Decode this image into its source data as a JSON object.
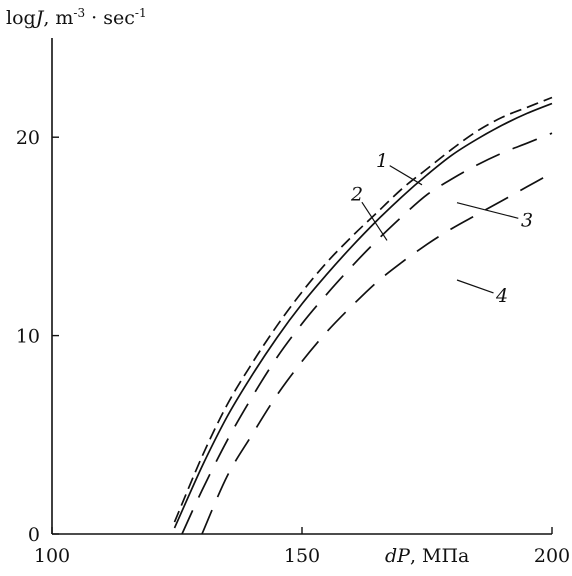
{
  "chart_data": {
    "type": "line",
    "title": "",
    "xlabel": {
      "var": "dP",
      "unit": ", МПа"
    },
    "ylabel": {
      "pre": "log",
      "var": "J",
      "mid": ", m",
      "sup1": "-3",
      "dot": " · sec",
      "sup2": "-1"
    },
    "xlim": [
      100,
      200
    ],
    "ylim": [
      0,
      25
    ],
    "x_ticks": [
      {
        "value": 100,
        "label": "100"
      },
      {
        "value": 150,
        "label": "150"
      },
      {
        "value": 200,
        "label": "200"
      }
    ],
    "y_ticks": [
      {
        "value": 0,
        "label": "0"
      },
      {
        "value": 10,
        "label": "10"
      },
      {
        "value": 20,
        "label": "20"
      }
    ],
    "grid": false,
    "series": [
      {
        "name": "1",
        "style": "solid",
        "x": [
          124.5,
          130,
          135,
          140,
          145,
          150,
          155,
          160,
          165,
          170,
          175,
          180,
          185,
          190,
          195,
          200
        ],
        "y": [
          0.3,
          3.4,
          5.9,
          8.0,
          9.9,
          11.6,
          13.1,
          14.5,
          15.8,
          17.0,
          18.1,
          19.1,
          19.9,
          20.6,
          21.2,
          21.7
        ]
      },
      {
        "name": "2",
        "style": "dash-short",
        "x": [
          124.5,
          130,
          135,
          140,
          145,
          150,
          155,
          160,
          165,
          170,
          175,
          180,
          185,
          190,
          195,
          200
        ],
        "y": [
          0.6,
          3.9,
          6.5,
          8.6,
          10.5,
          12.2,
          13.7,
          15.0,
          16.2,
          17.4,
          18.4,
          19.4,
          20.3,
          21.0,
          21.5,
          22.0
        ]
      },
      {
        "name": "3",
        "style": "dash-long",
        "x": [
          126,
          130,
          135,
          140,
          145,
          150,
          155,
          160,
          165,
          170,
          175,
          180,
          185,
          190,
          195,
          200
        ],
        "y": [
          0.0,
          2.2,
          4.7,
          6.9,
          8.9,
          10.6,
          12.1,
          13.5,
          14.8,
          16.0,
          17.1,
          17.9,
          18.6,
          19.2,
          19.7,
          20.2
        ]
      },
      {
        "name": "4",
        "style": "dash-long",
        "x": [
          130,
          135,
          140,
          145,
          150,
          155,
          160,
          165,
          170,
          175,
          180,
          185,
          190,
          195,
          200
        ],
        "y": [
          0.0,
          2.9,
          5.0,
          7.0,
          8.7,
          10.2,
          11.5,
          12.7,
          13.7,
          14.6,
          15.4,
          16.1,
          16.8,
          17.5,
          18.2
        ]
      }
    ],
    "annotations": [
      {
        "label": "1",
        "series": "1",
        "text_x": 166,
        "text_y": 18.5,
        "tip_x": 174,
        "tip_y": 17.6
      },
      {
        "label": "2",
        "series": "2",
        "text_x": 161,
        "text_y": 16.8,
        "tip_x": 167,
        "tip_y": 14.8
      },
      {
        "label": "3",
        "series": "3",
        "text_x": 195,
        "text_y": 15.5,
        "tip_x": 181,
        "tip_y": 16.7
      },
      {
        "label": "4",
        "series": "4",
        "text_x": 190,
        "text_y": 11.7,
        "tip_x": 181,
        "tip_y": 12.8
      }
    ]
  }
}
